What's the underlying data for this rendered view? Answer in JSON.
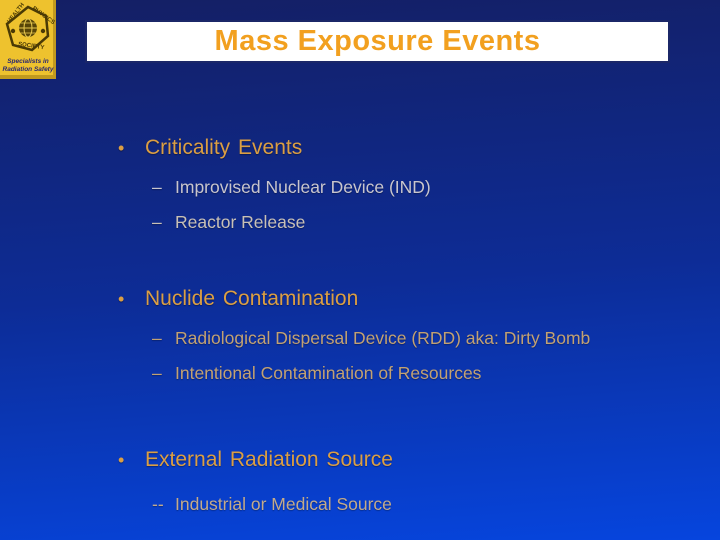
{
  "slide": {
    "title": "Mass Exposure Events",
    "logo": {
      "ring_words": [
        "HEALTH",
        "PHYSICS",
        "SOCIETY"
      ],
      "tagline_line1": "Specialists in",
      "tagline_line2": "Radiation Safety"
    },
    "colors": {
      "bg_top": "#141f64",
      "bg_bottom": "#0645de",
      "title_bar_bg": "#ffffff",
      "title_bar_border": "#1b2768",
      "title_text": "#f2a01f",
      "bullet_text": "#db9e43",
      "logo_bg": "#eec22e"
    },
    "bullets": [
      {
        "label": "Criticality Events",
        "subs": [
          {
            "dash": "–",
            "text": "Improvised Nuclear Device (IND)",
            "color": "#c8c5cd"
          },
          {
            "dash": "–",
            "text": "Reactor Release",
            "color": "#c8c0b6"
          }
        ]
      },
      {
        "label": "Nuclide Contamination",
        "subs": [
          {
            "dash": "–",
            "text": "Radiological Dispersal Device (RDD) aka: Dirty Bomb",
            "color": "#c2a173"
          },
          {
            "dash": "–",
            "text": "Intentional Contamination of Resources",
            "color": "#c2a173"
          }
        ]
      },
      {
        "label": "External Radiation Source",
        "subs": [
          {
            "dash": "--",
            "text": "Industrial or Medical Source",
            "color": "#c3aa8b"
          }
        ]
      }
    ]
  }
}
